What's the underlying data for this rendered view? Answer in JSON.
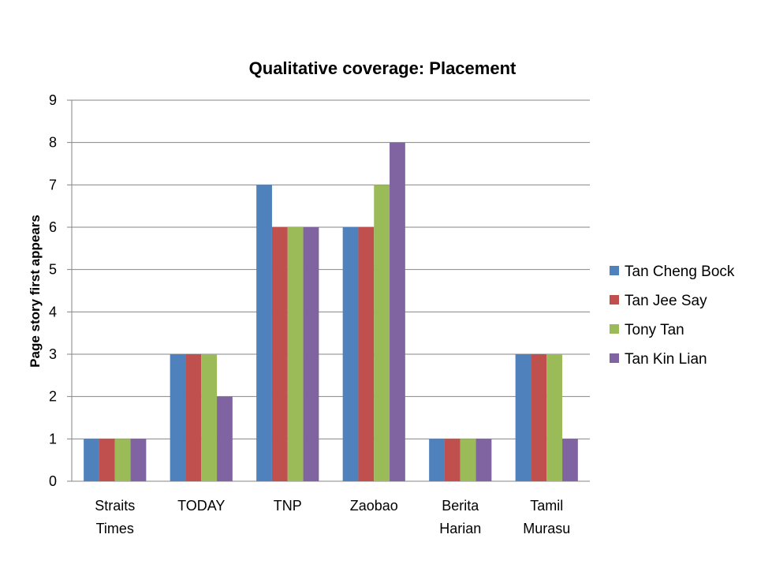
{
  "chart_data": {
    "type": "bar",
    "title": "Qualitative coverage: Placement",
    "xlabel": "",
    "ylabel": "Page story first appears",
    "ylim": [
      0,
      9
    ],
    "yticks": [
      "0",
      "1",
      "2",
      "3",
      "4",
      "5",
      "6",
      "7",
      "8",
      "9"
    ],
    "grid": true,
    "legend_position": "right",
    "categories": [
      [
        "Straits",
        "Times"
      ],
      [
        "TODAY"
      ],
      [
        "TNP"
      ],
      [
        "Zaobao"
      ],
      [
        "Berita",
        "Harian"
      ],
      [
        "Tamil",
        "Murasu"
      ]
    ],
    "series": [
      {
        "name": "Tan Cheng Bock",
        "color": "#4F81BD",
        "values": [
          1,
          3,
          7,
          6,
          1,
          3
        ]
      },
      {
        "name": "Tan Jee Say",
        "color": "#C0504D",
        "values": [
          1,
          3,
          6,
          6,
          1,
          3
        ]
      },
      {
        "name": "Tony Tan",
        "color": "#9BBB59",
        "values": [
          1,
          3,
          6,
          7,
          1,
          3
        ]
      },
      {
        "name": "Tan Kin Lian",
        "color": "#8064A2",
        "values": [
          1,
          2,
          6,
          8,
          1,
          1
        ]
      }
    ]
  }
}
